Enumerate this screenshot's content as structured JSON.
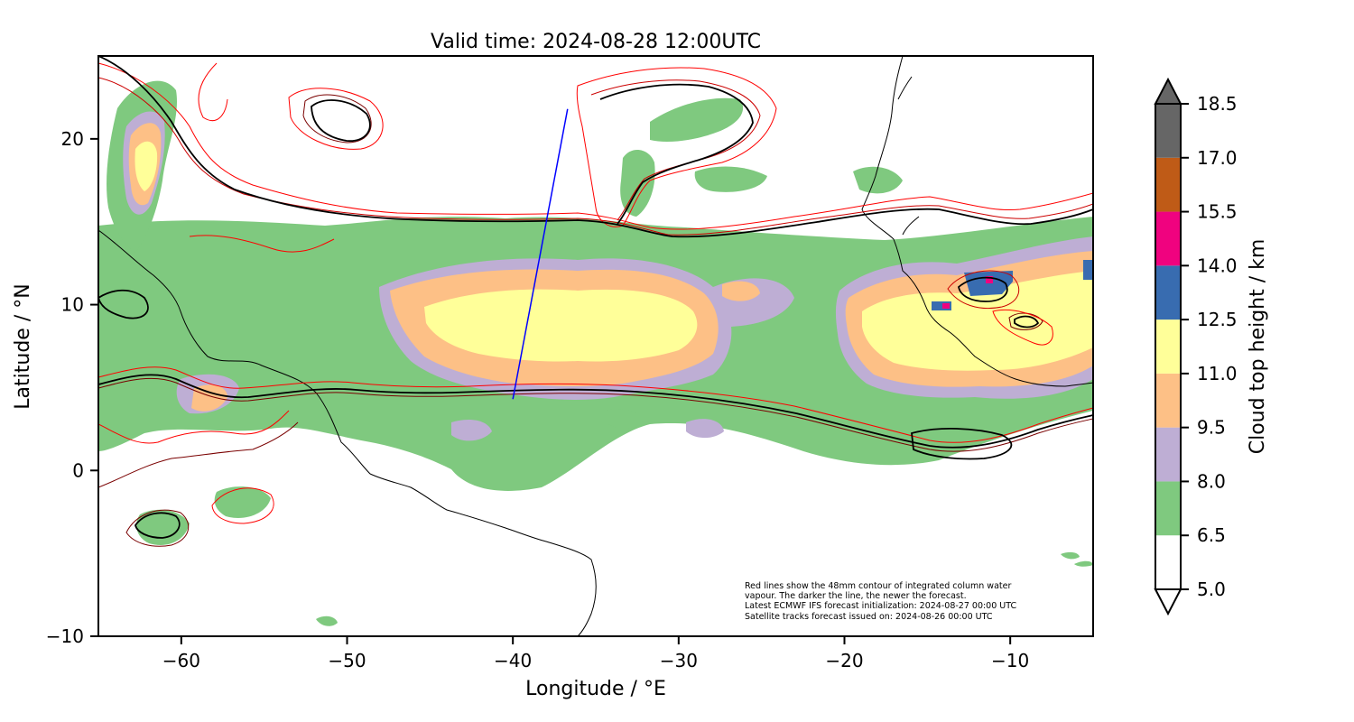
{
  "title": "Valid time: 2024-08-28 12:00UTC",
  "map": {
    "xlabel": "Longitude / °E",
    "ylabel": "Latitude / °N",
    "xlim": [
      -65,
      -5
    ],
    "ylim": [
      -10,
      25
    ],
    "x_ticks": [
      {
        "value": -60,
        "label": "−60"
      },
      {
        "value": -50,
        "label": "−50"
      },
      {
        "value": -40,
        "label": "−40"
      },
      {
        "value": -30,
        "label": "−30"
      },
      {
        "value": -20,
        "label": "−20"
      },
      {
        "value": -10,
        "label": "−10"
      }
    ],
    "y_ticks": [
      {
        "value": 20,
        "label": "20"
      },
      {
        "value": 10,
        "label": "10"
      },
      {
        "value": 0,
        "label": "0"
      },
      {
        "value": -10,
        "label": "−10"
      }
    ],
    "satellite_track": {
      "color": "#0000ff",
      "from": [
        -40.0,
        4.3
      ],
      "to": [
        -36.7,
        21.8
      ]
    },
    "contour_colors": [
      "#ff0000",
      "#cc0000",
      "#7a0000",
      "#000000"
    ]
  },
  "colorbar": {
    "label": "Cloud top height / km",
    "ticks": [
      "5.0",
      "6.5",
      "8.0",
      "9.5",
      "11.0",
      "12.5",
      "14.0",
      "15.5",
      "17.0",
      "18.5"
    ],
    "colors": [
      "#ffffff",
      "#7fc97f",
      "#beaed4",
      "#fdc086",
      "#ffff99",
      "#386cb0",
      "#f0027f",
      "#bf5b17",
      "#666666"
    ],
    "extend": "both"
  },
  "annotation": [
    "Red lines show the 48mm contour of integrated column water",
    "vapour. The darker the line, the newer the forecast.",
    "Latest ECMWF IFS forecast initialization: 2024-08-27 00:00 UTC",
    "Satellite tracks forecast issued on: 2024-08-26 00:00 UTC"
  ]
}
